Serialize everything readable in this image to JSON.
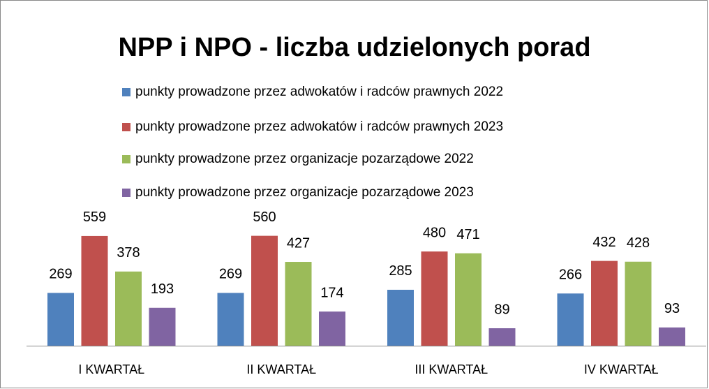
{
  "chart_data": {
    "type": "bar",
    "title": "NPP i NPO - liczba udzielonych porad",
    "categories": [
      "I KWARTAŁ",
      "II KWARTAŁ",
      "III KWARTAŁ",
      "IV KWARTAŁ"
    ],
    "series": [
      {
        "name": "punkty prowadzone przez adwokatów i radców prawnych 2022",
        "color": "#4f81bd",
        "values": [
          269,
          269,
          285,
          266
        ]
      },
      {
        "name": "punkty prowadzone przez adwokatów i radców prawnych 2023",
        "color": "#c0504d",
        "values": [
          559,
          560,
          480,
          432
        ]
      },
      {
        "name": "punkty prowadzone przez organizacje pozarządowe 2022",
        "color": "#9bbb59",
        "values": [
          378,
          427,
          471,
          428
        ]
      },
      {
        "name": "punkty prowadzone przez organizacje pozarządowe 2023",
        "color": "#8064a2",
        "values": [
          193,
          174,
          89,
          93
        ]
      }
    ],
    "legend": "top"
  }
}
